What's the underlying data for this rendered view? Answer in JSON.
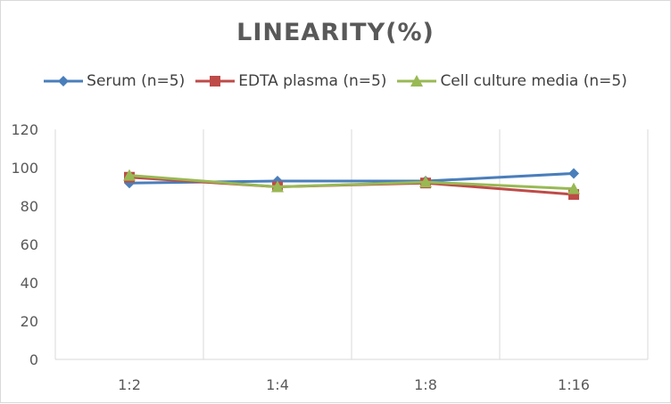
{
  "chart_data": {
    "type": "line",
    "title": "LINEARITY(%)",
    "categories": [
      "1:2",
      "1:4",
      "1:8",
      "1:16"
    ],
    "ylim": [
      0,
      120
    ],
    "yticks": [
      0,
      20,
      40,
      60,
      80,
      100,
      120
    ],
    "grid": "vertical",
    "legend_position": "top",
    "series": [
      {
        "name": "Serum (n=5)",
        "color": "#4a7ebb",
        "marker": "diamond",
        "values": [
          92,
          93,
          93,
          97
        ]
      },
      {
        "name": "EDTA plasma (n=5)",
        "color": "#be4b48",
        "marker": "square",
        "values": [
          95,
          90,
          92,
          86
        ]
      },
      {
        "name": "Cell culture media (n=5)",
        "color": "#98b954",
        "marker": "triangle",
        "values": [
          96,
          90,
          92.5,
          89
        ]
      }
    ]
  }
}
